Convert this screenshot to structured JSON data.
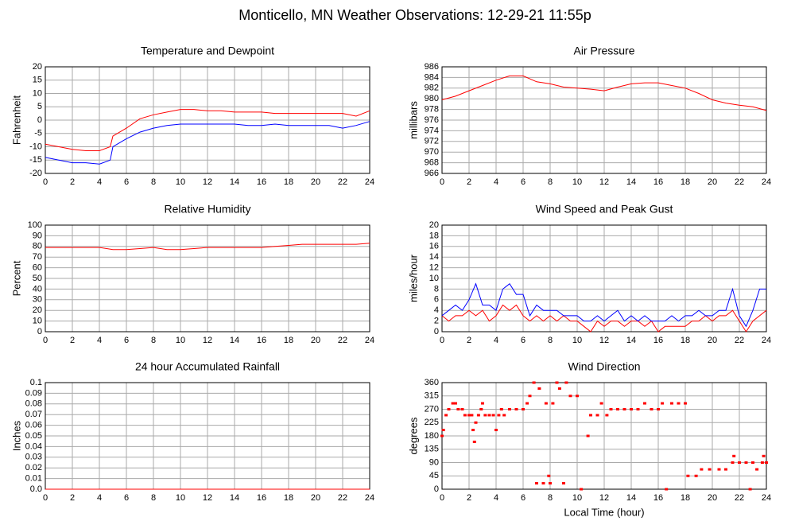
{
  "title": "Monticello, MN Weather Observations: 12-29-21 11:55p",
  "chart_data": [
    {
      "type": "line",
      "title": "Temperature and Dewpoint",
      "ylabel": "Fahrenheit",
      "x": [
        0,
        1,
        2,
        3,
        4,
        4.8,
        5,
        6,
        7,
        8,
        9,
        10,
        11,
        12,
        13,
        14,
        15,
        16,
        17,
        18,
        19,
        20,
        21,
        22,
        23,
        24
      ],
      "series": [
        {
          "name": "Temperature",
          "color": "#ff0000",
          "values": [
            -9,
            -10,
            -11,
            -11.5,
            -11.5,
            -10,
            -6,
            -3,
            0.5,
            2,
            3,
            4,
            4,
            3.5,
            3.5,
            3,
            3,
            3,
            2.5,
            2.5,
            2.5,
            2.5,
            2.5,
            2.5,
            1.5,
            3.5
          ]
        },
        {
          "name": "Dewpoint",
          "color": "#0000ff",
          "values": [
            -14,
            -15,
            -16,
            -16,
            -16.5,
            -15,
            -10,
            -7,
            -4.5,
            -3,
            -2,
            -1.5,
            -1.5,
            -1.5,
            -1.5,
            -1.5,
            -2,
            -2,
            -1.5,
            -2,
            -2,
            -2,
            -2,
            -3,
            -2,
            -0.5
          ]
        }
      ],
      "xlim": [
        0,
        24
      ],
      "xticks": [
        0,
        2,
        4,
        6,
        8,
        10,
        12,
        14,
        16,
        18,
        20,
        22,
        24
      ],
      "ylim": [
        -20,
        20
      ],
      "yticks": [
        -20,
        -15,
        -10,
        -5,
        0,
        5,
        10,
        15,
        20
      ],
      "grid": true
    },
    {
      "type": "line",
      "title": "Air Pressure",
      "ylabel": "millibars",
      "x": [
        0,
        1,
        2,
        3,
        4,
        5,
        6,
        7,
        8,
        9,
        10,
        11,
        12,
        13,
        14,
        15,
        16,
        17,
        18,
        19,
        20,
        21,
        22,
        23,
        24
      ],
      "series": [
        {
          "name": "Pressure",
          "color": "#ff0000",
          "values": [
            979.8,
            980.5,
            981.5,
            982.5,
            983.5,
            984.3,
            984.3,
            983.2,
            982.8,
            982.2,
            982,
            981.8,
            981.5,
            982.2,
            982.8,
            983,
            983,
            982.5,
            982,
            981,
            979.8,
            979.2,
            978.8,
            978.5,
            977.8
          ]
        }
      ],
      "xlim": [
        0,
        24
      ],
      "xticks": [
        0,
        2,
        4,
        6,
        8,
        10,
        12,
        14,
        16,
        18,
        20,
        22,
        24
      ],
      "ylim": [
        966,
        986
      ],
      "yticks": [
        966,
        968,
        970,
        972,
        974,
        976,
        978,
        980,
        982,
        984,
        986
      ],
      "grid": true
    },
    {
      "type": "line",
      "title": "Relative Humidity",
      "ylabel": "Percent",
      "x": [
        0,
        1,
        2,
        3,
        4,
        5,
        6,
        7,
        8,
        9,
        10,
        11,
        12,
        13,
        14,
        15,
        16,
        17,
        18,
        19,
        20,
        21,
        22,
        23,
        24
      ],
      "series": [
        {
          "name": "Humidity",
          "color": "#ff0000",
          "values": [
            79,
            79,
            79,
            79,
            79,
            77,
            77,
            78,
            79,
            77,
            77,
            78,
            79,
            79,
            79,
            79,
            79,
            80,
            81,
            82,
            82,
            82,
            82,
            82,
            83
          ]
        }
      ],
      "xlim": [
        0,
        24
      ],
      "xticks": [
        0,
        2,
        4,
        6,
        8,
        10,
        12,
        14,
        16,
        18,
        20,
        22,
        24
      ],
      "ylim": [
        0,
        100
      ],
      "yticks": [
        0,
        10,
        20,
        30,
        40,
        50,
        60,
        70,
        80,
        90,
        100
      ],
      "grid": true
    },
    {
      "type": "line",
      "title": "Wind Speed and Peak Gust",
      "ylabel": "miles/hour",
      "x": [
        0,
        0.5,
        1,
        1.5,
        2,
        2.5,
        3,
        3.5,
        4,
        4.5,
        5,
        5.5,
        6,
        6.5,
        7,
        7.5,
        8,
        8.5,
        9,
        9.5,
        10,
        10.5,
        11,
        11.5,
        12,
        12.5,
        13,
        13.5,
        14,
        14.5,
        15,
        15.5,
        16,
        16.5,
        17,
        17.5,
        18,
        18.5,
        19,
        19.5,
        20,
        20.5,
        21,
        21.5,
        22,
        22.5,
        23,
        23.5,
        24
      ],
      "series": [
        {
          "name": "Wind Speed",
          "color": "#ff0000",
          "values": [
            3,
            2,
            3,
            3,
            4,
            3,
            4,
            2,
            3,
            5,
            4,
            5,
            3,
            2,
            3,
            2,
            3,
            2,
            3,
            2,
            2,
            1,
            0,
            2,
            1,
            2,
            2,
            1,
            2,
            2,
            1,
            2,
            0,
            1,
            1,
            1,
            1,
            2,
            2,
            3,
            2,
            3,
            3,
            4,
            2,
            0,
            2,
            3,
            4
          ]
        },
        {
          "name": "Peak Gust",
          "color": "#0000ff",
          "values": [
            3,
            4,
            5,
            4,
            6,
            9,
            5,
            5,
            4,
            8,
            9,
            7,
            7,
            3,
            5,
            4,
            4,
            4,
            3,
            3,
            3,
            2,
            2,
            3,
            2,
            3,
            4,
            2,
            3,
            2,
            3,
            2,
            2,
            2,
            3,
            2,
            3,
            3,
            4,
            3,
            3,
            4,
            4,
            8,
            3,
            1,
            4,
            8,
            8
          ]
        }
      ],
      "xlim": [
        0,
        24
      ],
      "xticks": [
        0,
        2,
        4,
        6,
        8,
        10,
        12,
        14,
        16,
        18,
        20,
        22,
        24
      ],
      "ylim": [
        0,
        20
      ],
      "yticks": [
        0,
        2,
        4,
        6,
        8,
        10,
        12,
        14,
        16,
        18,
        20
      ],
      "grid": true
    },
    {
      "type": "line",
      "title": "24 hour Accumulated Rainfall",
      "ylabel": "Inches",
      "x": [
        0,
        24
      ],
      "series": [
        {
          "name": "Rainfall",
          "color": "#ff0000",
          "values": [
            0,
            0
          ]
        }
      ],
      "xlim": [
        0,
        24
      ],
      "xticks": [
        0,
        2,
        4,
        6,
        8,
        10,
        12,
        14,
        16,
        18,
        20,
        22,
        24
      ],
      "ylim": [
        0,
        0.1
      ],
      "yticks": [
        {
          "value": 0,
          "label": "0.0"
        },
        0.01,
        0.02,
        0.03,
        0.04,
        0.05,
        0.06,
        0.07,
        0.08,
        0.09,
        0.1
      ],
      "grid": true
    },
    {
      "type": "scatter",
      "title": "Wind Direction",
      "ylabel": "degrees",
      "xlabel": "Local Time (hour)",
      "x": [
        0,
        0.1,
        0.3,
        0.5,
        0.8,
        1,
        1.2,
        1.5,
        1.7,
        2,
        2.2,
        2.3,
        2.4,
        2.5,
        2.7,
        2.9,
        3,
        3.2,
        3.5,
        3.8,
        4,
        4.2,
        4.4,
        4.6,
        5,
        5.5,
        6,
        6.3,
        6.5,
        6.8,
        7,
        7.2,
        7.5,
        7.7,
        7.9,
        8,
        8.2,
        8.5,
        8.7,
        9,
        9.2,
        9.5,
        10,
        10.3,
        10.8,
        11,
        11.5,
        11.8,
        12.2,
        12.5,
        13,
        13.5,
        14,
        14.5,
        15,
        15.5,
        16,
        16.3,
        16.6,
        17,
        17.5,
        18,
        18.2,
        18.8,
        19.2,
        19.8,
        20.5,
        21,
        21.5,
        21.6,
        22,
        22.5,
        22.8,
        23,
        23.3,
        23.7,
        23.8,
        24
      ],
      "series": [
        {
          "name": "Direction",
          "color": "#ff0000",
          "values": [
            180,
            200,
            250,
            270,
            290,
            290,
            270,
            270,
            250,
            250,
            250,
            200,
            160,
            225,
            250,
            270,
            290,
            250,
            250,
            250,
            200,
            250,
            270,
            250,
            270,
            270,
            270,
            290,
            315,
            360,
            20,
            340,
            20,
            290,
            45,
            20,
            290,
            360,
            340,
            20,
            360,
            315,
            315,
            0,
            180,
            250,
            250,
            290,
            250,
            270,
            270,
            270,
            270,
            270,
            290,
            270,
            270,
            290,
            0,
            290,
            290,
            290,
            45,
            45,
            67,
            67,
            67,
            67,
            90,
            112,
            90,
            90,
            0,
            90,
            67,
            90,
            112,
            90
          ]
        }
      ],
      "xlim": [
        0,
        24
      ],
      "xticks": [
        0,
        2,
        4,
        6,
        8,
        10,
        12,
        14,
        16,
        18,
        20,
        22,
        24
      ],
      "ylim": [
        0,
        360
      ],
      "yticks": [
        0,
        45,
        90,
        135,
        180,
        225,
        270,
        315,
        360
      ],
      "grid": true
    }
  ]
}
